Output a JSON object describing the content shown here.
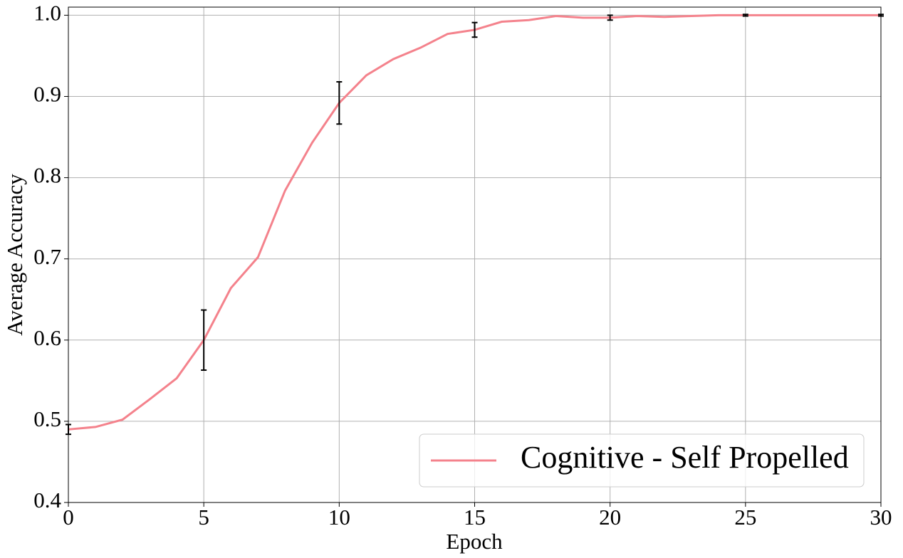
{
  "chart_data": {
    "type": "line",
    "xlabel": "Epoch",
    "ylabel": "Average Accuracy",
    "x": [
      0,
      1,
      2,
      3,
      4,
      5,
      6,
      7,
      8,
      9,
      10,
      11,
      12,
      13,
      14,
      15,
      16,
      17,
      18,
      19,
      20,
      21,
      22,
      23,
      24,
      25,
      26,
      27,
      28,
      29,
      30
    ],
    "series": [
      {
        "name": "Cognitive - Self Propelled",
        "color": "#f4828c",
        "values": [
          0.49,
          0.493,
          0.502,
          0.527,
          0.553,
          0.6,
          0.664,
          0.702,
          0.784,
          0.843,
          0.892,
          0.926,
          0.946,
          0.96,
          0.977,
          0.982,
          0.992,
          0.994,
          0.999,
          0.997,
          0.997,
          0.999,
          0.998,
          0.999,
          1.0,
          1.0,
          1.0,
          1.0,
          1.0,
          1.0,
          1.0
        ],
        "errors": [
          0.006,
          null,
          null,
          null,
          null,
          0.037,
          null,
          null,
          null,
          null,
          0.026,
          null,
          null,
          null,
          null,
          0.009,
          null,
          null,
          null,
          null,
          0.003,
          null,
          null,
          null,
          null,
          0.001,
          null,
          null,
          null,
          null,
          0.001
        ]
      }
    ],
    "xlim": [
      0,
      30
    ],
    "ylim": [
      0.4,
      1.01
    ],
    "xticks": [
      0,
      5,
      10,
      15,
      20,
      25,
      30
    ],
    "yticks": [
      0.4,
      0.5,
      0.6,
      0.7,
      0.8,
      0.9,
      {
        "value": 1,
        "label": "1.0"
      }
    ],
    "grid": true,
    "legend": "lower right"
  }
}
